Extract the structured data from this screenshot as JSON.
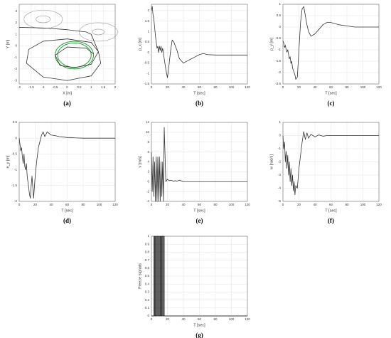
{
  "chart_data": [
    {
      "type": "line",
      "caption": "(a)",
      "xlabel": "X [m]",
      "ylabel": "Y [m]",
      "grid": true,
      "xlim": [
        -2,
        2
      ],
      "ylim": [
        -3.3,
        3.6
      ],
      "xticks": [
        -2,
        -1.5,
        -1,
        -0.5,
        0,
        0.5,
        1,
        1.5,
        2
      ],
      "yticks": [
        -3,
        -2,
        -1,
        0,
        1,
        2,
        3
      ],
      "series": [
        {
          "color": "#333333",
          "x": [
            -2,
            -1,
            0,
            0.8,
            1,
            1.1,
            1.3,
            1.4,
            1,
            0,
            -1,
            -1.7,
            -1.6,
            -1,
            0,
            1,
            1.3,
            1,
            0.3,
            -0.3,
            -0.5,
            0,
            0.8,
            1.1
          ],
          "values": [
            1.6,
            1.55,
            1.4,
            1.2,
            1.0,
            0.5,
            -0.5,
            -1.5,
            -2.6,
            -3,
            -2.7,
            -1.5,
            -0.3,
            0.4,
            0.6,
            0.3,
            -0.5,
            -1.6,
            -1.9,
            -1.7,
            -0.8,
            -0.1,
            -0.2,
            -0.7
          ]
        }
      ],
      "circles": [
        {
          "color": "#999999",
          "cx": -1,
          "cy": 2.3,
          "r": 0.3
        },
        {
          "color": "#999999",
          "cx": -1,
          "cy": 2.3,
          "r": 0.8
        },
        {
          "color": "#999999",
          "cx": 1.3,
          "cy": 1.2,
          "r": 0.25
        },
        {
          "color": "#999999",
          "cx": 1.3,
          "cy": 1.2,
          "r": 0.8
        }
      ],
      "ellipses": [
        {
          "color": "#2e9e3e",
          "cx": 0.3,
          "cy": -0.8,
          "rx": 0.8,
          "ry": 1.2
        },
        {
          "color": "#2e9e3e",
          "cx": 0.3,
          "cy": -0.8,
          "rx": 0.7,
          "ry": 1.05
        }
      ]
    },
    {
      "type": "line",
      "caption": "(b)",
      "xlabel": "T [sec]",
      "ylabel": "p_x [m]",
      "grid": true,
      "xlim": [
        0,
        120
      ],
      "ylim": [
        -1.5,
        2.3
      ],
      "xticks": [
        0,
        20,
        40,
        60,
        80,
        100,
        120
      ],
      "yticks": [
        -1.5,
        -1,
        -0.5,
        0,
        0.5,
        1,
        1.5,
        2
      ],
      "x": [
        0,
        1,
        2,
        3,
        4,
        5,
        6,
        7,
        8,
        9,
        10,
        11,
        12,
        13,
        14,
        15,
        16,
        18,
        20,
        22,
        24,
        26,
        28,
        30,
        32,
        35,
        40,
        45,
        50,
        55,
        60,
        65,
        70,
        80,
        90,
        100,
        110,
        120
      ],
      "series": [
        {
          "color": "#333333",
          "values": [
            2.0,
            2.2,
            1.8,
            1.6,
            1.2,
            0.8,
            0.5,
            0.2,
            0.3,
            0,
            0.3,
            0.1,
            0.3,
            0,
            0.2,
            0,
            -0.3,
            -0.8,
            -1.2,
            -0.6,
            0.1,
            0.6,
            0.5,
            0.3,
            0.1,
            -0.3,
            -0.5,
            -0.4,
            -0.3,
            -0.2,
            -0.1,
            -0.05,
            -0.1,
            -0.12,
            -0.12,
            -0.12,
            -0.12,
            -0.12
          ]
        }
      ]
    },
    {
      "type": "line",
      "caption": "(c)",
      "xlabel": "T [sec]",
      "ylabel": "p_y [m]",
      "grid": true,
      "xlim": [
        0,
        120
      ],
      "ylim": [
        -2.5,
        1
      ],
      "xticks": [
        0,
        20,
        40,
        60,
        80,
        100,
        120
      ],
      "yticks": [
        -2.5,
        -2,
        -1.5,
        -1,
        -0.5,
        0,
        0.5,
        1
      ],
      "x": [
        0,
        1,
        2,
        3,
        4,
        5,
        6,
        7,
        8,
        9,
        10,
        11,
        12,
        13,
        14,
        15,
        16,
        18,
        20,
        22,
        24,
        26,
        28,
        30,
        32,
        35,
        40,
        45,
        50,
        55,
        60,
        65,
        70,
        80,
        90,
        100,
        110,
        120
      ],
      "series": [
        {
          "color": "#333333",
          "values": [
            -0.6,
            -0.7,
            -0.9,
            -0.8,
            -1.0,
            -1.1,
            -1.0,
            -1.2,
            -1.4,
            -1.3,
            -1.6,
            -1.5,
            -1.8,
            -1.9,
            -2.0,
            -2.1,
            -2.3,
            -2.2,
            -1.0,
            0.2,
            0.8,
            0.9,
            0.5,
            0.1,
            -0.2,
            -0.4,
            -0.3,
            -0.1,
            0.1,
            0.2,
            0.2,
            0.15,
            0.1,
            0.05,
            0,
            0,
            0,
            0
          ]
        }
      ]
    },
    {
      "type": "line",
      "caption": "(d)",
      "xlabel": "T [sec]",
      "ylabel": "e_y [m]",
      "grid": true,
      "xlim": [
        0,
        120
      ],
      "ylim": [
        -2,
        0.5
      ],
      "xticks": [
        0,
        20,
        40,
        60,
        80,
        100,
        120
      ],
      "yticks": [
        -2,
        -1.5,
        -1,
        -0.5,
        0,
        0.5
      ],
      "x": [
        0,
        1,
        2,
        3,
        4,
        5,
        6,
        7,
        8,
        9,
        10,
        11,
        12,
        13,
        14,
        15,
        16,
        18,
        20,
        22,
        24,
        26,
        28,
        30,
        32,
        35,
        40,
        45,
        50,
        55,
        60,
        65,
        70,
        80,
        90,
        100,
        110,
        120
      ],
      "series": [
        {
          "color": "#333333",
          "values": [
            0,
            -0.2,
            -0.4,
            -0.3,
            -0.6,
            -0.8,
            -0.5,
            -0.9,
            -1.0,
            -0.8,
            -1.2,
            -1.4,
            -1.6,
            -1.8,
            -1.9,
            -1.5,
            -1.2,
            -1.9,
            -1.2,
            -0.7,
            -0.3,
            -0.1,
            0.1,
            0.2,
            0.05,
            0.2,
            0.1,
            0.08,
            0.05,
            0.04,
            0.02,
            0.02,
            0.01,
            0,
            0,
            0,
            0,
            0
          ]
        }
      ]
    },
    {
      "type": "line",
      "caption": "(e)",
      "xlabel": "T [sec]",
      "ylabel": "v [m/s]",
      "grid": true,
      "xlim": [
        0,
        120
      ],
      "ylim": [
        -4,
        12
      ],
      "xticks": [
        0,
        20,
        40,
        60,
        80,
        100,
        120
      ],
      "yticks": [
        -4,
        -2,
        0,
        2,
        4,
        6,
        8,
        10,
        12
      ],
      "x": [
        0,
        1,
        2,
        3,
        4,
        5,
        6,
        7,
        8,
        9,
        10,
        11,
        12,
        13,
        14,
        15,
        16,
        18,
        20,
        22,
        24,
        26,
        28,
        30,
        32,
        35,
        40,
        45,
        50,
        55,
        60,
        65,
        70,
        80,
        90,
        100,
        110,
        120
      ],
      "series": [
        {
          "color": "#333333",
          "values": [
            6,
            -2,
            5,
            -3,
            4,
            -4,
            5,
            -4,
            5,
            -4,
            5,
            -4,
            4,
            -3,
            4,
            -4,
            11,
            0,
            0.5,
            0.2,
            0.3,
            0.2,
            0.1,
            0.2,
            0.1,
            0.3,
            0,
            0,
            0,
            0,
            0,
            0,
            0,
            0,
            0,
            0,
            0,
            0
          ]
        }
      ]
    },
    {
      "type": "line",
      "caption": "(f)",
      "xlabel": "T [sec]",
      "ylabel": "w [rad/s]",
      "grid": true,
      "xlim": [
        0,
        120
      ],
      "ylim": [
        -5,
        1
      ],
      "xticks": [
        0,
        20,
        40,
        60,
        80,
        100,
        120
      ],
      "yticks": [
        -5,
        -4,
        -3,
        -2,
        -1,
        0,
        1
      ],
      "x": [
        0,
        1,
        2,
        3,
        4,
        5,
        6,
        7,
        8,
        9,
        10,
        11,
        12,
        13,
        14,
        15,
        16,
        18,
        20,
        22,
        24,
        26,
        28,
        30,
        32,
        35,
        40,
        45,
        50,
        55,
        60,
        65,
        70,
        80,
        90,
        100,
        110,
        120
      ],
      "series": [
        {
          "color": "#333333",
          "values": [
            0,
            -1,
            -0.5,
            -2,
            -1.2,
            -2.5,
            -1.5,
            -3,
            -2,
            -3.5,
            -2.5,
            -3.8,
            -3,
            -4.2,
            -3.5,
            -4.5,
            -3.8,
            -4,
            -2.5,
            -1.5,
            -0.5,
            0.3,
            -0.3,
            0.2,
            -0.2,
            0.1,
            -0.1,
            0.05,
            -0.05,
            0,
            0,
            0,
            0,
            0,
            0,
            0,
            0,
            0
          ]
        }
      ]
    },
    {
      "type": "line",
      "caption": "(g)",
      "xlabel": "T [sec]",
      "ylabel": "Freeze signals",
      "grid": true,
      "xlim": [
        0,
        120
      ],
      "ylim": [
        0,
        1
      ],
      "xticks": [
        0,
        20,
        40,
        60,
        80,
        100,
        120
      ],
      "yticks": [
        0,
        0.1,
        0.2,
        0.3,
        0.4,
        0.5,
        0.6,
        0.7,
        0.8,
        0.9,
        1
      ],
      "x": [
        0,
        3,
        3,
        4,
        4,
        5,
        5,
        6,
        6,
        7,
        7,
        8,
        8,
        9,
        9,
        10,
        10,
        11,
        11,
        12,
        12,
        13,
        13,
        14,
        14,
        15,
        15,
        16,
        16,
        17,
        17,
        120
      ],
      "series": [
        {
          "color": "#111111",
          "values": [
            0,
            0,
            1,
            1,
            0,
            0,
            1,
            1,
            0,
            0,
            1,
            1,
            0,
            0,
            1,
            1,
            0,
            0,
            1,
            1,
            0,
            0,
            1,
            1,
            0,
            0,
            1,
            1,
            0,
            0,
            0,
            0
          ]
        }
      ]
    }
  ]
}
